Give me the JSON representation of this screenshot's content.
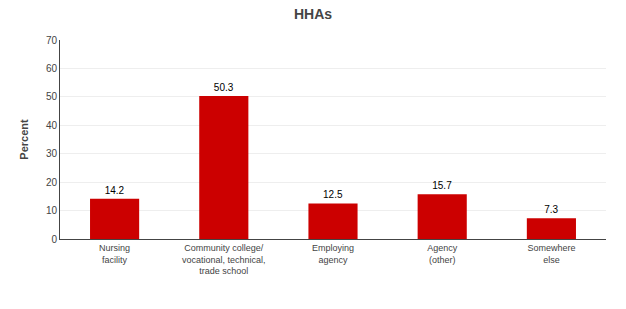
{
  "chart_data": {
    "type": "bar",
    "title": "HHAs",
    "categories": [
      "Nursing\nfacility",
      "Community college/\nvocational, technical,\ntrade school",
      "Employing\nagency",
      "Agency\n(other)",
      "Somewhere\nelse"
    ],
    "values": [
      14.2,
      50.3,
      12.5,
      15.7,
      7.3
    ],
    "color": "#cc0000",
    "ylabel": "Percent",
    "ylim": [
      0,
      70
    ],
    "yticks": [
      0,
      10,
      20,
      30,
      40,
      50,
      60,
      70
    ],
    "grid": true,
    "data_labels": true
  }
}
